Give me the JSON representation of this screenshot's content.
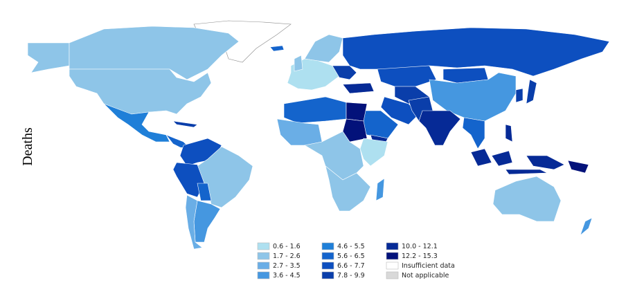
{
  "map": {
    "axis_label": "Deaths",
    "legend": [
      {
        "label": "0.6 - 1.6",
        "color": "#aee0f0"
      },
      {
        "label": "1.7 - 2.6",
        "color": "#8ec5e8"
      },
      {
        "label": "2.7 - 3.5",
        "color": "#6aaee6"
      },
      {
        "label": "3.6 - 4.5",
        "color": "#4597e0"
      },
      {
        "label": "4.6 - 5.5",
        "color": "#1f7fd8"
      },
      {
        "label": "5.6 - 6.5",
        "color": "#1464cc"
      },
      {
        "label": "6.6 - 7.7",
        "color": "#0d4fbf"
      },
      {
        "label": "7.8 - 9.9",
        "color": "#0a3eaa"
      },
      {
        "label": "10.0 - 12.1",
        "color": "#062a96"
      },
      {
        "label": "12.2 - 15.3",
        "color": "#03127a"
      },
      {
        "label": "Insufficient data",
        "color": "#ffffff"
      },
      {
        "label": "Not applicable",
        "color": "#d9d9d9"
      }
    ]
  }
}
